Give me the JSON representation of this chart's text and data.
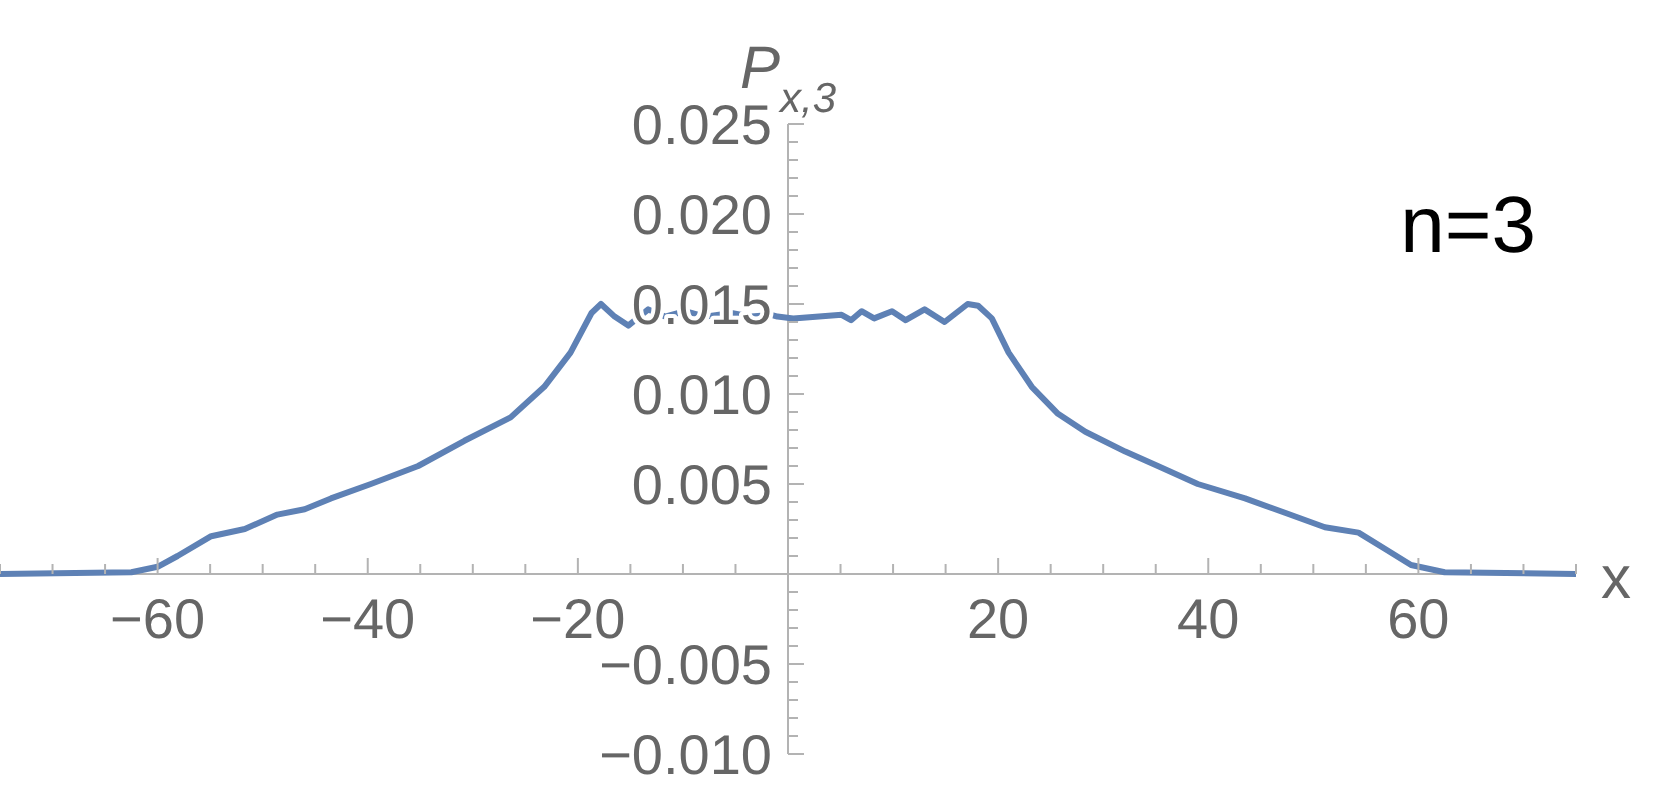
{
  "chart_data": {
    "type": "line",
    "ylabel": "P$_{x,3}$",
    "xlabel": "x",
    "annotations": [
      "n=3"
    ],
    "xlim": [
      -75,
      75
    ],
    "ylim": [
      -0.01,
      0.025
    ],
    "xticks": [
      {
        "value": -75,
        "label": null
      },
      {
        "value": -70,
        "label": null
      },
      {
        "value": -65,
        "label": null
      },
      {
        "value": -60,
        "label": "−60"
      },
      {
        "value": -55,
        "label": null
      },
      {
        "value": -50,
        "label": null
      },
      {
        "value": -45,
        "label": null
      },
      {
        "value": -40,
        "label": "−40"
      },
      {
        "value": -35,
        "label": null
      },
      {
        "value": -30,
        "label": null
      },
      {
        "value": -25,
        "label": null
      },
      {
        "value": -20,
        "label": "−20"
      },
      {
        "value": -15,
        "label": null
      },
      {
        "value": -10,
        "label": null
      },
      {
        "value": -5,
        "label": null
      },
      {
        "value": 5,
        "label": null
      },
      {
        "value": 10,
        "label": null
      },
      {
        "value": 15,
        "label": null
      },
      {
        "value": 20,
        "label": "20"
      },
      {
        "value": 25,
        "label": null
      },
      {
        "value": 30,
        "label": null
      },
      {
        "value": 35,
        "label": null
      },
      {
        "value": 40,
        "label": "40"
      },
      {
        "value": 45,
        "label": null
      },
      {
        "value": 50,
        "label": null
      },
      {
        "value": 55,
        "label": null
      },
      {
        "value": 60,
        "label": "60"
      },
      {
        "value": 65,
        "label": null
      },
      {
        "value": 70,
        "label": null
      },
      {
        "value": 75,
        "label": null
      }
    ],
    "yticks": [
      {
        "value": -0.01,
        "label": "−0.010"
      },
      {
        "value": -0.009,
        "label": null
      },
      {
        "value": -0.008,
        "label": null
      },
      {
        "value": -0.007,
        "label": null
      },
      {
        "value": -0.006,
        "label": null
      },
      {
        "value": -0.005,
        "label": "−0.005"
      },
      {
        "value": -0.004,
        "label": null
      },
      {
        "value": -0.003,
        "label": null
      },
      {
        "value": -0.002,
        "label": null
      },
      {
        "value": -0.001,
        "label": null
      },
      {
        "value": 0.001,
        "label": null
      },
      {
        "value": 0.002,
        "label": null
      },
      {
        "value": 0.003,
        "label": null
      },
      {
        "value": 0.004,
        "label": null
      },
      {
        "value": 0.005,
        "label": "0.005"
      },
      {
        "value": 0.006,
        "label": null
      },
      {
        "value": 0.007,
        "label": null
      },
      {
        "value": 0.008,
        "label": null
      },
      {
        "value": 0.009,
        "label": null
      },
      {
        "value": 0.01,
        "label": "0.010"
      },
      {
        "value": 0.011,
        "label": null
      },
      {
        "value": 0.012,
        "label": null
      },
      {
        "value": 0.013,
        "label": null
      },
      {
        "value": 0.014,
        "label": null
      },
      {
        "value": 0.015,
        "label": "0.015"
      },
      {
        "value": 0.016,
        "label": null
      },
      {
        "value": 0.017,
        "label": null
      },
      {
        "value": 0.018,
        "label": null
      },
      {
        "value": 0.019,
        "label": null
      },
      {
        "value": 0.02,
        "label": "0.020"
      },
      {
        "value": 0.021,
        "label": null
      },
      {
        "value": 0.022,
        "label": null
      },
      {
        "value": 0.023,
        "label": null
      },
      {
        "value": 0.024,
        "label": null
      },
      {
        "value": 0.025,
        "label": "0.025"
      }
    ],
    "marker": "none",
    "line_style": "solid",
    "series": [
      {
        "color": "#5e81b5",
        "x": [
          -75,
          -62.5,
          -60,
          -58.1,
          -54.9,
          -51.7,
          -48.6,
          -46,
          -43.5,
          -39.7,
          -35.2,
          -30.8,
          -26.4,
          -23.2,
          -20.7,
          -18.7,
          -17.8,
          -16.5,
          -15.2,
          -13.3,
          -11.7,
          -9.8,
          -7.9,
          -5.4,
          -3.5,
          -1.6,
          -1,
          0.5,
          5.1,
          6,
          7,
          8.2,
          9.9,
          11.2,
          13,
          14.9,
          17.1,
          18.1,
          19.4,
          21,
          23.2,
          25.7,
          28.3,
          32.1,
          35.2,
          39,
          43.5,
          47.3,
          51.1,
          54.3,
          56.8,
          59.3,
          62.5,
          75
        ],
        "values": [
          0,
          0.0001,
          0.0004,
          0.001,
          0.0021,
          0.0025,
          0.0033,
          0.0036,
          0.0042,
          0.005,
          0.006,
          0.0074,
          0.0087,
          0.0104,
          0.0123,
          0.0145,
          0.015,
          0.0143,
          0.0138,
          0.0147,
          0.0143,
          0.0146,
          0.0143,
          0.0145,
          0.0143,
          0.0144,
          0.0143,
          0.0142,
          0.0144,
          0.0141,
          0.0146,
          0.0142,
          0.0146,
          0.0141,
          0.0147,
          0.014,
          0.015,
          0.0149,
          0.0142,
          0.0123,
          0.0104,
          0.0089,
          0.0079,
          0.0068,
          0.006,
          0.005,
          0.0042,
          0.0034,
          0.0026,
          0.0023,
          0.0014,
          0.0005,
          0.0001,
          0
        ]
      }
    ]
  }
}
